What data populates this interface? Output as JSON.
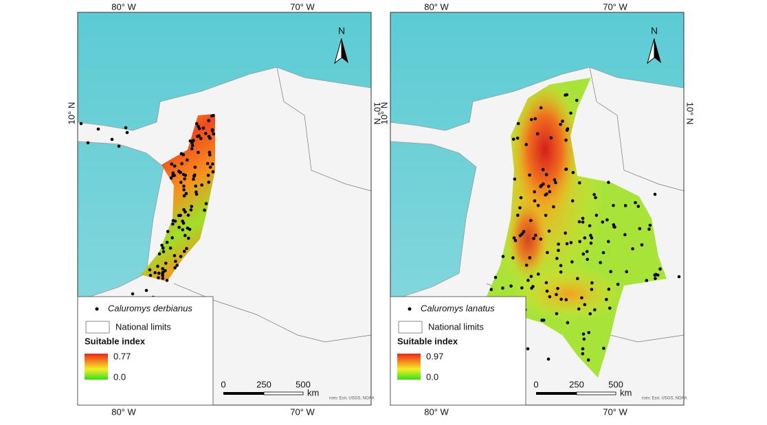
{
  "maps": [
    {
      "coordinate_labels": {
        "top": [
          "80° W",
          "70° W"
        ],
        "bottom": [
          "80° W",
          "70° W"
        ],
        "left": "10° N",
        "right": "10° N"
      },
      "north": "N",
      "legend": {
        "species": "Caluromys derbianus",
        "limits": "National limits",
        "index_title": "Suitable index",
        "max": "0.77",
        "min": "0.0"
      },
      "scale": {
        "ticks": [
          "0",
          "250",
          "500"
        ],
        "unit": "km"
      },
      "attribution": "rces: Esri, USGS, NOAA"
    },
    {
      "coordinate_labels": {
        "top": [
          "80° W",
          "70° W"
        ],
        "bottom": [
          "80° W",
          "70° W"
        ],
        "left": "10° N",
        "right": "10° N"
      },
      "north": "N",
      "legend": {
        "species": "Caluromys lanatus",
        "limits": "National limits",
        "index_title": "Suitable index",
        "max": "0.97",
        "min": "0.0"
      },
      "scale": {
        "ticks": [
          "0",
          "250",
          "500"
        ],
        "unit": "km"
      },
      "attribution": "rces: Esri, USGS, NOAA"
    }
  ]
}
